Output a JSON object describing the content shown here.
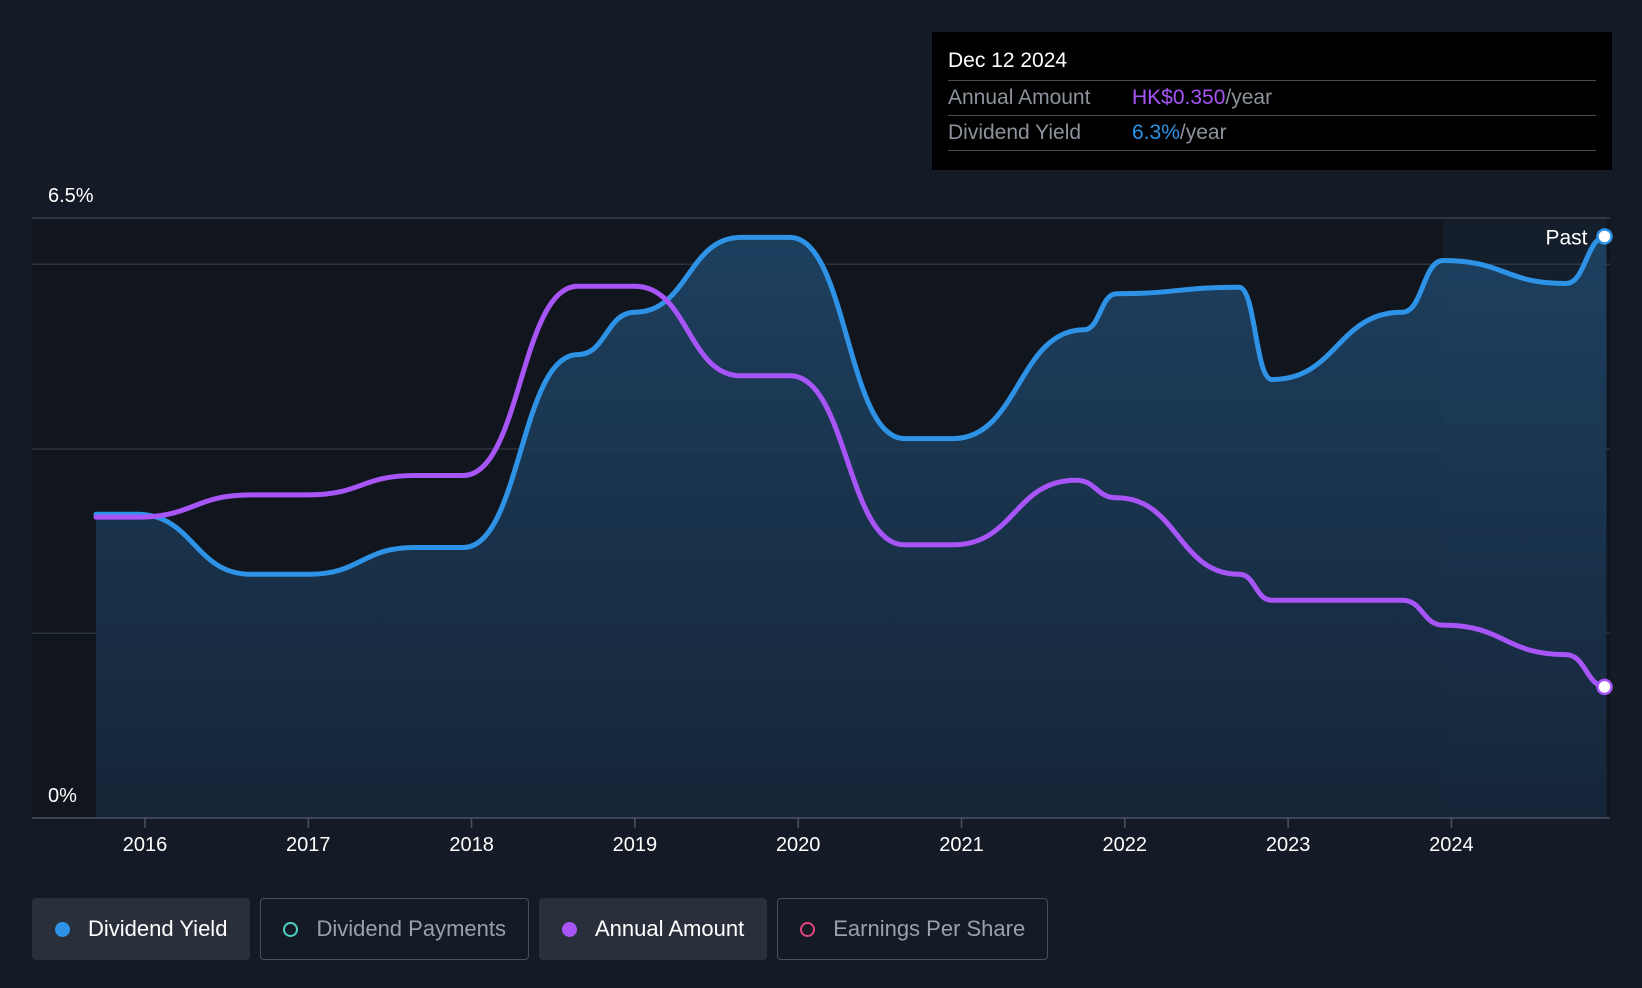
{
  "tooltip": {
    "date": "Dec 12 2024",
    "rows": [
      {
        "label": "Annual Amount",
        "value": "HK$0.350",
        "unit": "/year",
        "color": "#a855f7"
      },
      {
        "label": "Dividend Yield",
        "value": "6.3%",
        "unit": "/year",
        "color": "#2e93e6"
      }
    ]
  },
  "legend": [
    {
      "label": "Dividend Yield",
      "active": true,
      "filled": true,
      "color": "#2e93e6"
    },
    {
      "label": "Dividend Payments",
      "active": false,
      "filled": false,
      "color": "#4fd1c5"
    },
    {
      "label": "Annual Amount",
      "active": true,
      "filled": true,
      "color": "#a855f7"
    },
    {
      "label": "Earnings Per Share",
      "active": false,
      "filled": false,
      "color": "#e0457b"
    }
  ],
  "chart_data": {
    "type": "line",
    "y_top_label": "6.5%",
    "y_bottom_label": "0%",
    "ylim": [
      0,
      6.5
    ],
    "xlim": [
      2015.31,
      2024.95
    ],
    "x_ticks": [
      "2016",
      "2017",
      "2018",
      "2019",
      "2020",
      "2021",
      "2022",
      "2023",
      "2024"
    ],
    "past_label": "Past",
    "past_start": 2023.95,
    "series": [
      {
        "name": "Dividend Yield",
        "color": "#2e93e6",
        "points": [
          [
            2015.7,
            3.29
          ],
          [
            2015.95,
            3.29
          ],
          [
            2016.65,
            2.64
          ],
          [
            2017.0,
            2.64
          ],
          [
            2017.65,
            2.93
          ],
          [
            2017.95,
            2.93
          ],
          [
            2018.65,
            5.02
          ],
          [
            2019.0,
            5.48
          ],
          [
            2019.65,
            6.29
          ],
          [
            2019.95,
            6.29
          ],
          [
            2020.65,
            4.11
          ],
          [
            2020.95,
            4.11
          ],
          [
            2021.75,
            5.29
          ],
          [
            2021.95,
            5.68
          ],
          [
            2022.7,
            5.75
          ],
          [
            2022.9,
            4.75
          ],
          [
            2023.7,
            5.48
          ],
          [
            2023.95,
            6.04
          ],
          [
            2024.7,
            5.79
          ],
          [
            2024.95,
            6.3
          ]
        ]
      },
      {
        "name": "Annual Amount",
        "color": "#a855f7",
        "points": [
          [
            2015.7,
            3.26
          ],
          [
            2015.95,
            3.26
          ],
          [
            2016.65,
            3.5
          ],
          [
            2017.0,
            3.5
          ],
          [
            2017.65,
            3.71
          ],
          [
            2017.95,
            3.71
          ],
          [
            2018.65,
            5.76
          ],
          [
            2019.0,
            5.76
          ],
          [
            2019.65,
            4.79
          ],
          [
            2019.95,
            4.79
          ],
          [
            2020.65,
            2.96
          ],
          [
            2020.95,
            2.96
          ],
          [
            2021.7,
            3.66
          ],
          [
            2021.95,
            3.47
          ],
          [
            2022.7,
            2.64
          ],
          [
            2022.9,
            2.36
          ],
          [
            2023.7,
            2.36
          ],
          [
            2023.95,
            2.09
          ],
          [
            2024.7,
            1.77
          ],
          [
            2024.95,
            1.42
          ]
        ]
      }
    ]
  }
}
